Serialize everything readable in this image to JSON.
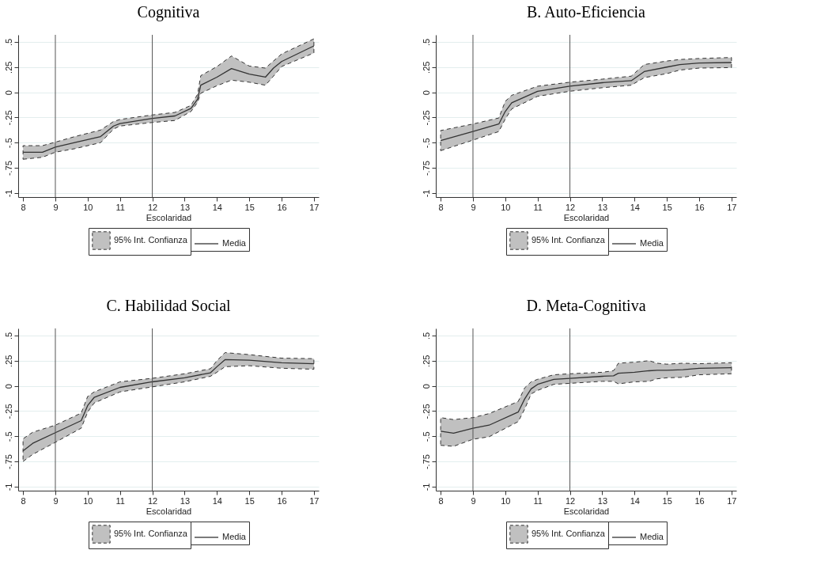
{
  "chart_data": [
    {
      "type": "line",
      "title": "Cognitiva",
      "annotations": [
        "95% Int. Confianza"
      ],
      "xlabel": "Escolaridad",
      "xlim": [
        7.85,
        17.15
      ],
      "ylim": [
        -1.04,
        0.57
      ],
      "xticks": [
        8,
        9,
        10,
        11,
        12,
        13,
        14,
        15,
        16,
        17
      ],
      "yticks": [
        {
          "value": -1,
          "label": "-1"
        },
        {
          "value": -0.75,
          "label": "-.75"
        },
        {
          "value": -0.5,
          "label": "-.5"
        },
        {
          "value": -0.25,
          "label": "-.25"
        },
        {
          "value": 0,
          "label": "0"
        },
        {
          "value": 0.25,
          "label": ".25"
        },
        {
          "value": 0.5,
          "label": ".5"
        }
      ],
      "grid": "y",
      "legend": "bottom",
      "line_style": "solid",
      "ref_lines": [
        {
          "axis": "x",
          "value": 9
        },
        {
          "axis": "x",
          "value": 12
        }
      ],
      "series": [
        {
          "name": "Media",
          "color": "#333333",
          "x": [
            8,
            8.6,
            9,
            9.6,
            10.4,
            10.8,
            11,
            12,
            12.7,
            13.2,
            13.4,
            13.5,
            14,
            14.45,
            15,
            15.5,
            15.75,
            16,
            17
          ],
          "values": [
            -0.595,
            -0.595,
            -0.545,
            -0.5,
            -0.44,
            -0.335,
            -0.31,
            -0.26,
            -0.235,
            -0.16,
            -0.07,
            0.07,
            0.15,
            0.235,
            0.18,
            0.15,
            0.24,
            0.305,
            0.46
          ],
          "upper": [
            -0.53,
            -0.53,
            -0.495,
            -0.44,
            -0.375,
            -0.29,
            -0.27,
            -0.225,
            -0.2,
            -0.13,
            -0.02,
            0.165,
            0.255,
            0.36,
            0.26,
            0.24,
            0.31,
            0.38,
            0.53
          ],
          "lower": [
            -0.665,
            -0.645,
            -0.595,
            -0.56,
            -0.5,
            -0.365,
            -0.335,
            -0.3,
            -0.28,
            -0.19,
            -0.1,
            -0.01,
            0.065,
            0.12,
            0.1,
            0.07,
            0.16,
            0.255,
            0.39
          ]
        }
      ]
    },
    {
      "type": "line",
      "title": "B.   Auto-Eficiencia",
      "annotations": [
        "95% Int. Confianza"
      ],
      "xlabel": "Escolaridad",
      "xlim": [
        7.85,
        17.15
      ],
      "ylim": [
        -1.04,
        0.57
      ],
      "xticks": [
        8,
        9,
        10,
        11,
        12,
        13,
        14,
        15,
        16,
        17
      ],
      "yticks": [
        {
          "value": -1,
          "label": "-1"
        },
        {
          "value": -0.75,
          "label": "-.75"
        },
        {
          "value": -0.5,
          "label": "-.5"
        },
        {
          "value": -0.25,
          "label": "-.25"
        },
        {
          "value": 0,
          "label": "0"
        },
        {
          "value": 0.25,
          "label": ".25"
        },
        {
          "value": 0.5,
          "label": ".5"
        }
      ],
      "grid": "y",
      "legend": "bottom",
      "line_style": "solid",
      "ref_lines": [
        {
          "axis": "x",
          "value": 9
        },
        {
          "axis": "x",
          "value": 12
        }
      ],
      "series": [
        {
          "name": "Media",
          "color": "#333333",
          "x": [
            8,
            9,
            9.8,
            10,
            10.2,
            11,
            12,
            13,
            13.9,
            14.3,
            15,
            15.4,
            16,
            17
          ],
          "values": [
            -0.48,
            -0.39,
            -0.315,
            -0.19,
            -0.105,
            0.01,
            0.06,
            0.095,
            0.115,
            0.205,
            0.25,
            0.275,
            0.29,
            0.295
          ],
          "upper": [
            -0.38,
            -0.315,
            -0.255,
            -0.09,
            -0.03,
            0.06,
            0.1,
            0.13,
            0.16,
            0.275,
            0.31,
            0.325,
            0.335,
            0.345
          ],
          "lower": [
            -0.58,
            -0.475,
            -0.39,
            -0.265,
            -0.165,
            -0.04,
            0.01,
            0.045,
            0.07,
            0.145,
            0.185,
            0.22,
            0.24,
            0.245
          ]
        }
      ]
    },
    {
      "type": "line",
      "title": "C. Habilidad Social",
      "annotations": [
        "95% Int. Confianza"
      ],
      "xlabel": "Escolaridad",
      "xlim": [
        7.85,
        17.15
      ],
      "ylim": [
        -1.04,
        0.57
      ],
      "xticks": [
        8,
        9,
        10,
        11,
        12,
        13,
        14,
        15,
        16,
        17
      ],
      "yticks": [
        {
          "value": -1,
          "label": "-1"
        },
        {
          "value": -0.75,
          "label": "-.75"
        },
        {
          "value": -0.5,
          "label": "-.5"
        },
        {
          "value": -0.25,
          "label": "-.25"
        },
        {
          "value": 0,
          "label": "0"
        },
        {
          "value": 0.25,
          "label": ".25"
        },
        {
          "value": 0.5,
          "label": ".5"
        }
      ],
      "grid": "y",
      "legend": "bottom",
      "line_style": "solid",
      "ref_lines": [
        {
          "axis": "x",
          "value": 9
        },
        {
          "axis": "x",
          "value": 12
        }
      ],
      "series": [
        {
          "name": "Media",
          "color": "#333333",
          "x": [
            8,
            8.3,
            9,
            9.8,
            10,
            10.2,
            11,
            12,
            13,
            13.8,
            14,
            14.25,
            15,
            16,
            17
          ],
          "values": [
            -0.645,
            -0.57,
            -0.465,
            -0.345,
            -0.195,
            -0.115,
            -0.015,
            0.04,
            0.08,
            0.13,
            0.19,
            0.26,
            0.255,
            0.23,
            0.22
          ],
          "upper": [
            -0.525,
            -0.46,
            -0.39,
            -0.27,
            -0.105,
            -0.06,
            0.04,
            0.075,
            0.12,
            0.17,
            0.25,
            0.33,
            0.31,
            0.275,
            0.27
          ],
          "lower": [
            -0.75,
            -0.68,
            -0.56,
            -0.42,
            -0.26,
            -0.17,
            -0.06,
            -0.01,
            0.04,
            0.095,
            0.135,
            0.19,
            0.2,
            0.175,
            0.165
          ]
        }
      ]
    },
    {
      "type": "line",
      "title": "D. Meta-Cognitiva",
      "annotations": [
        "95% Int. Confianza"
      ],
      "xlabel": "Escolaridad",
      "xlim": [
        7.85,
        17.15
      ],
      "ylim": [
        -1.04,
        0.57
      ],
      "xticks": [
        8,
        9,
        10,
        11,
        12,
        13,
        14,
        15,
        16,
        17
      ],
      "yticks": [
        {
          "value": -1,
          "label": "-1"
        },
        {
          "value": -0.75,
          "label": "-.75"
        },
        {
          "value": -0.5,
          "label": "-.5"
        },
        {
          "value": -0.25,
          "label": "-.25"
        },
        {
          "value": 0,
          "label": "0"
        },
        {
          "value": 0.25,
          "label": ".25"
        },
        {
          "value": 0.5,
          "label": ".5"
        }
      ],
      "grid": "y",
      "legend": "bottom",
      "line_style": "solid",
      "ref_lines": [
        {
          "axis": "x",
          "value": 9
        },
        {
          "axis": "x",
          "value": 12
        }
      ],
      "series": [
        {
          "name": "Media",
          "color": "#333333",
          "x": [
            8,
            8.4,
            9,
            9.5,
            10.4,
            10.6,
            10.8,
            11,
            11.5,
            12,
            13,
            13.35,
            13.5,
            14,
            14.45,
            14.7,
            15,
            15.5,
            16,
            17
          ],
          "values": [
            -0.45,
            -0.47,
            -0.42,
            -0.39,
            -0.26,
            -0.13,
            -0.03,
            0.015,
            0.065,
            0.075,
            0.095,
            0.1,
            0.125,
            0.135,
            0.15,
            0.155,
            0.155,
            0.16,
            0.175,
            0.18
          ],
          "upper": [
            -0.315,
            -0.335,
            -0.315,
            -0.275,
            -0.155,
            -0.02,
            0.04,
            0.065,
            0.11,
            0.12,
            0.135,
            0.15,
            0.225,
            0.235,
            0.25,
            0.225,
            0.215,
            0.225,
            0.22,
            0.23
          ],
          "lower": [
            -0.59,
            -0.6,
            -0.53,
            -0.505,
            -0.355,
            -0.23,
            -0.08,
            -0.045,
            0.015,
            0.025,
            0.045,
            0.045,
            0.02,
            0.04,
            0.045,
            0.07,
            0.08,
            0.085,
            0.11,
            0.12
          ]
        }
      ]
    }
  ]
}
